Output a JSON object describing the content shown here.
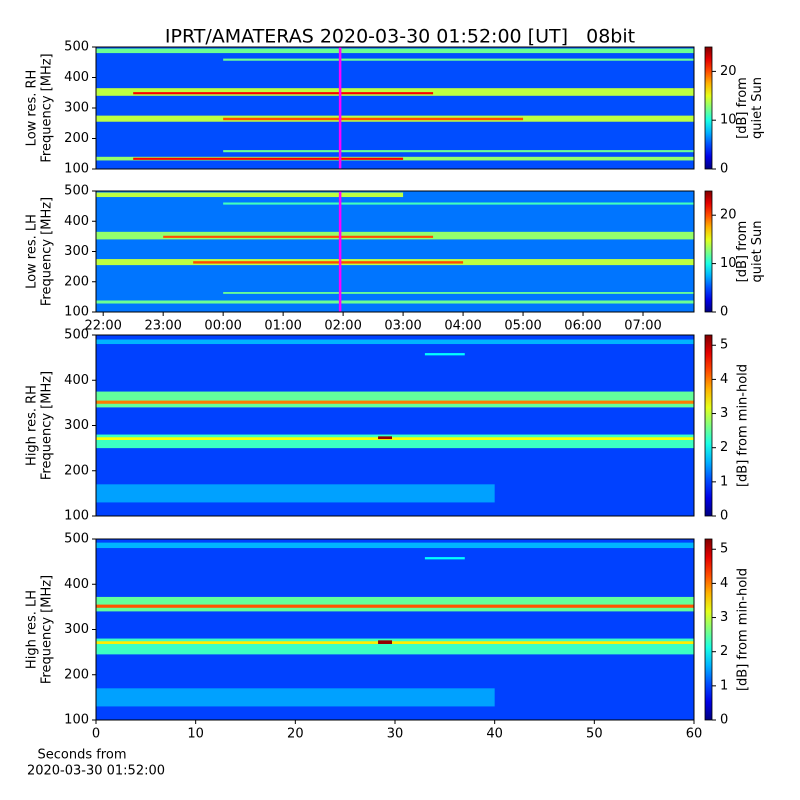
{
  "title": "IPRT/AMATERAS 2020-03-30 01:52:00 [UT]   08bit",
  "chart_data": [
    {
      "type": "heatmap",
      "ylabel": [
        "Low res. RH",
        "Frequency [MHz]"
      ],
      "ylim": [
        100,
        500
      ],
      "yticks": [
        100,
        200,
        300,
        400,
        500
      ],
      "xlim": [
        21.88,
        31.85
      ],
      "background": 5,
      "bands": [
        {
          "y": [
            480,
            495
          ],
          "x": [
            21.88,
            31.85
          ],
          "value": 12
        },
        {
          "y": [
            455,
            462
          ],
          "x": [
            24,
            31.85
          ],
          "value": 12
        },
        {
          "y": [
            340,
            365
          ],
          "x": [
            21.88,
            31.85
          ],
          "value": 14
        },
        {
          "y": [
            345,
            352
          ],
          "x": [
            22.5,
            27.5
          ],
          "value": 22
        },
        {
          "y": [
            255,
            275
          ],
          "x": [
            21.88,
            31.85
          ],
          "value": 14
        },
        {
          "y": [
            260,
            268
          ],
          "x": [
            24,
            29
          ],
          "value": 20
        },
        {
          "y": [
            155,
            162
          ],
          "x": [
            24,
            31.85
          ],
          "value": 12
        },
        {
          "y": [
            128,
            140
          ],
          "x": [
            21.88,
            31.85
          ],
          "value": 13
        },
        {
          "y": [
            130,
            137
          ],
          "x": [
            22.5,
            27
          ],
          "value": 22
        }
      ],
      "marker": {
        "x": 25.95,
        "color": "#ff00ff"
      },
      "clim": [
        0,
        25
      ],
      "cticks": [
        0,
        10,
        20
      ],
      "clabel": [
        "[dB] from",
        "quiet Sun"
      ]
    },
    {
      "type": "heatmap",
      "ylabel": [
        "Low res. LH",
        "Frequency [MHz]"
      ],
      "ylim": [
        100,
        500
      ],
      "yticks": [
        100,
        200,
        300,
        400,
        500
      ],
      "xlim": [
        21.88,
        31.85
      ],
      "xticks": [
        {
          "value": 22,
          "label": "22:00"
        },
        {
          "value": 23,
          "label": "23:00"
        },
        {
          "value": 24,
          "label": "00:00"
        },
        {
          "value": 25,
          "label": "01:00"
        },
        {
          "value": 26,
          "label": "02:00"
        },
        {
          "value": 27,
          "label": "03:00"
        },
        {
          "value": 28,
          "label": "04:00"
        },
        {
          "value": 29,
          "label": "05:00"
        },
        {
          "value": 30,
          "label": "06:00"
        },
        {
          "value": 31,
          "label": "07:00"
        }
      ],
      "background": 6,
      "bands": [
        {
          "y": [
            480,
            495
          ],
          "x": [
            21.88,
            27
          ],
          "value": 14
        },
        {
          "y": [
            455,
            462
          ],
          "x": [
            24,
            31.85
          ],
          "value": 11
        },
        {
          "y": [
            340,
            365
          ],
          "x": [
            21.88,
            31.85
          ],
          "value": 13
        },
        {
          "y": [
            345,
            352
          ],
          "x": [
            23,
            27.5
          ],
          "value": 20
        },
        {
          "y": [
            255,
            275
          ],
          "x": [
            21.88,
            31.85
          ],
          "value": 14
        },
        {
          "y": [
            260,
            268
          ],
          "x": [
            23.5,
            28
          ],
          "value": 20
        },
        {
          "y": [
            160,
            166
          ],
          "x": [
            24,
            31.85
          ],
          "value": 12
        },
        {
          "y": [
            128,
            138
          ],
          "x": [
            21.88,
            31.85
          ],
          "value": 12
        }
      ],
      "marker": {
        "x": 25.95,
        "color": "#ff00ff"
      },
      "clim": [
        0,
        25
      ],
      "cticks": [
        0,
        10,
        20
      ],
      "clabel": [
        "[dB] from",
        "quiet Sun"
      ]
    },
    {
      "type": "heatmap",
      "ylabel": [
        "High res. RH",
        "Frequency [MHz]"
      ],
      "ylim": [
        100,
        500
      ],
      "yticks": [
        100,
        200,
        300,
        400,
        500
      ],
      "xlim": [
        0,
        60
      ],
      "background": 1,
      "bands": [
        {
          "y": [
            480,
            490
          ],
          "x": [
            0,
            60
          ],
          "value": 1.6
        },
        {
          "y": [
            455,
            460
          ],
          "x": [
            33,
            37
          ],
          "value": 2
        },
        {
          "y": [
            340,
            375
          ],
          "x": [
            0,
            60
          ],
          "value": 2.5
        },
        {
          "y": [
            348,
            355
          ],
          "x": [
            0,
            60
          ],
          "value": 4
        },
        {
          "y": [
            250,
            280
          ],
          "x": [
            0,
            60
          ],
          "value": 2.3
        },
        {
          "y": [
            268,
            274
          ],
          "x": [
            0,
            60
          ],
          "value": 3.3
        },
        {
          "y": [
            270,
            276
          ],
          "x": [
            28.3,
            29.7
          ],
          "value": 5.2
        },
        {
          "y": [
            130,
            170
          ],
          "x": [
            0,
            40
          ],
          "value": 1.5
        }
      ],
      "clim": [
        0,
        5.3
      ],
      "cticks": [
        0,
        1,
        2,
        3,
        4,
        5
      ],
      "clabel": [
        "[dB] from min-hold"
      ]
    },
    {
      "type": "heatmap",
      "ylabel": [
        "High res. LH",
        "Frequency [MHz]"
      ],
      "ylim": [
        100,
        500
      ],
      "yticks": [
        100,
        200,
        300,
        400,
        500
      ],
      "xlim": [
        0,
        60
      ],
      "xticks": [
        0,
        10,
        20,
        30,
        40,
        50,
        60
      ],
      "background": 1,
      "bands": [
        {
          "y": [
            480,
            492
          ],
          "x": [
            0,
            60
          ],
          "value": 1.6
        },
        {
          "y": [
            455,
            460
          ],
          "x": [
            33,
            37
          ],
          "value": 2
        },
        {
          "y": [
            340,
            372
          ],
          "x": [
            0,
            60
          ],
          "value": 2.5
        },
        {
          "y": [
            348,
            355
          ],
          "x": [
            0,
            60
          ],
          "value": 4.2
        },
        {
          "y": [
            245,
            280
          ],
          "x": [
            0,
            60
          ],
          "value": 2.3
        },
        {
          "y": [
            268,
            274
          ],
          "x": [
            0,
            60
          ],
          "value": 3.4
        },
        {
          "y": [
            268,
            276
          ],
          "x": [
            28.3,
            29.7
          ],
          "value": 5.2
        },
        {
          "y": [
            130,
            170
          ],
          "x": [
            0,
            40
          ],
          "value": 1.5
        }
      ],
      "clim": [
        0,
        5.3
      ],
      "cticks": [
        0,
        1,
        2,
        3,
        4,
        5
      ],
      "clabel": [
        "[dB] from min-hold"
      ],
      "xlabel": [
        "Seconds from",
        "2020-03-30 01:52:00"
      ]
    }
  ]
}
